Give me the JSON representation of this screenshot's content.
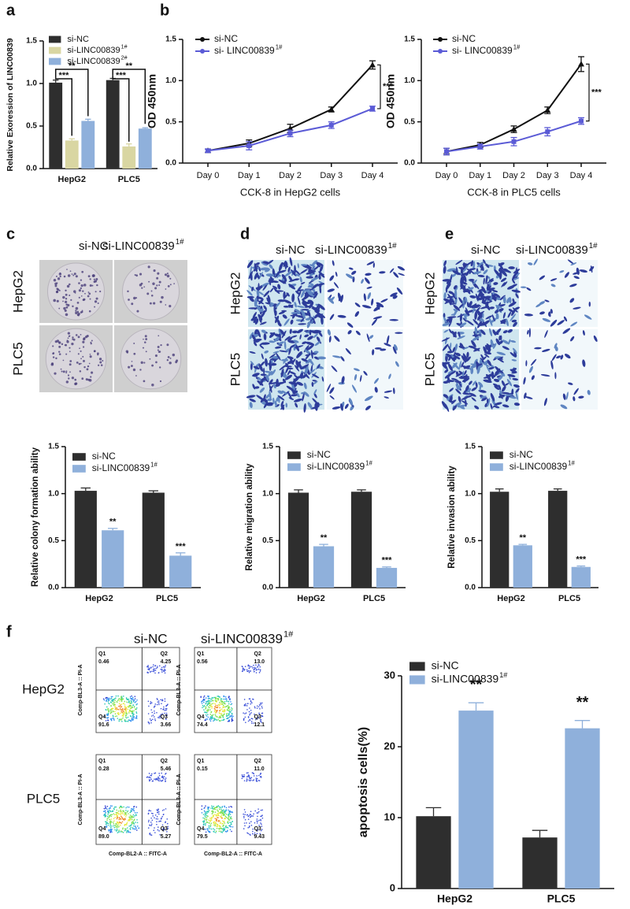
{
  "panel_labels": [
    "a",
    "b",
    "c",
    "d",
    "e",
    "f"
  ],
  "chart_data": [
    {
      "type": "bar",
      "ylabel": "Relative Exoression of LINC00839",
      "categories": [
        "HepG2",
        "PLC5"
      ],
      "series": [
        {
          "name": "si-NC",
          "color": "#2e2e2e",
          "values": [
            1.01,
            1.04
          ],
          "errors": [
            0.03,
            0.02
          ]
        },
        {
          "name": "si-LINC00839",
          "superscript": "1#",
          "color": "#d9d6a2",
          "values": [
            0.33,
            0.26
          ],
          "errors": [
            0.02,
            0.03
          ]
        },
        {
          "name": "si-LINC00839",
          "superscript": "2#",
          "color": "#8fb0db",
          "values": [
            0.56,
            0.47
          ],
          "errors": [
            0.02,
            0.01
          ]
        }
      ],
      "ylim": [
        0,
        1.5
      ],
      "yticks": [
        {
          "value": 0,
          "label": "0.0"
        },
        0.5,
        {
          "value": 1,
          "label": "1.0"
        },
        1.5
      ],
      "annotations": [
        "***",
        "**",
        "***",
        "**"
      ]
    },
    {
      "type": "line",
      "ylabel": "OD 450nm",
      "xlabel": "CCK-8 in HepG2 cells",
      "categories": [
        "Day 0",
        "Day 1",
        "Day 2",
        "Day 3",
        "Day 4"
      ],
      "series": [
        {
          "name": "si-NC",
          "color": "#111111",
          "values": [
            0.15,
            0.24,
            0.42,
            0.65,
            1.19
          ],
          "errors": [
            0.02,
            0.04,
            0.05,
            0.03,
            0.05
          ]
        },
        {
          "name": "si- LINC00839",
          "superscript": "1#",
          "color": "#5b5bd6",
          "values": [
            0.15,
            0.21,
            0.36,
            0.46,
            0.66
          ],
          "errors": [
            0.02,
            0.05,
            0.04,
            0.04,
            0.03
          ]
        }
      ],
      "ylim": [
        0,
        1.5
      ],
      "yticks": [
        {
          "value": 0,
          "label": "0.0"
        },
        0.5,
        {
          "value": 1,
          "label": "1.0"
        },
        1.5
      ],
      "annotations": [
        "***"
      ]
    },
    {
      "type": "line",
      "ylabel": "OD 450nm",
      "xlabel": "CCK-8 in PLC5 cells",
      "categories": [
        "Day 0",
        "Day 1",
        "Day 2",
        "Day 3",
        "Day 4"
      ],
      "series": [
        {
          "name": "si-NC",
          "color": "#111111",
          "values": [
            0.14,
            0.22,
            0.41,
            0.64,
            1.2
          ],
          "errors": [
            0.04,
            0.03,
            0.04,
            0.04,
            0.09
          ]
        },
        {
          "name": "si- LINC00839",
          "superscript": "1#",
          "color": "#5b5bd6",
          "values": [
            0.14,
            0.2,
            0.26,
            0.38,
            0.51
          ],
          "errors": [
            0.04,
            0.03,
            0.05,
            0.05,
            0.04
          ]
        }
      ],
      "ylim": [
        0,
        1.5
      ],
      "yticks": [
        {
          "value": 0,
          "label": "0.0"
        },
        0.5,
        {
          "value": 1,
          "label": "1.0"
        },
        1.5
      ],
      "annotations": [
        "***"
      ]
    },
    {
      "type": "bar",
      "ylabel": "Relative colony formation ability",
      "categories": [
        "HepG2",
        "PLC5"
      ],
      "series": [
        {
          "name": "si-NC",
          "color": "#2e2e2e",
          "values": [
            1.03,
            1.01
          ],
          "errors": [
            0.03,
            0.02
          ]
        },
        {
          "name": "si-LINC00839",
          "superscript": "1#",
          "color": "#8fb0db",
          "values": [
            0.61,
            0.34
          ],
          "errors": [
            0.02,
            0.03
          ]
        }
      ],
      "ylim": [
        0,
        1.5
      ],
      "yticks": [
        {
          "value": 0,
          "label": "0.0"
        },
        0.5,
        {
          "value": 1,
          "label": "1.0"
        },
        1.5
      ],
      "annotations": [
        "**",
        "***"
      ]
    },
    {
      "type": "bar",
      "ylabel": "Relative migration ability",
      "categories": [
        "HepG2",
        "PLC5"
      ],
      "series": [
        {
          "name": "si-NC",
          "color": "#2e2e2e",
          "values": [
            1.01,
            1.02
          ],
          "errors": [
            0.03,
            0.02
          ]
        },
        {
          "name": "si-LINC00839",
          "superscript": "1#",
          "color": "#8fb0db",
          "values": [
            0.44,
            0.21
          ],
          "errors": [
            0.02,
            0.01
          ]
        }
      ],
      "ylim": [
        0,
        1.5
      ],
      "yticks": [
        {
          "value": 0,
          "label": "0.0"
        },
        0.5,
        {
          "value": 1,
          "label": "1.0"
        },
        1.5
      ],
      "annotations": [
        "**",
        "***"
      ]
    },
    {
      "type": "bar",
      "ylabel": "Relative invasion ability",
      "categories": [
        "HepG2",
        "PLC5"
      ],
      "series": [
        {
          "name": "si-NC",
          "color": "#2e2e2e",
          "values": [
            1.02,
            1.03
          ],
          "errors": [
            0.03,
            0.02
          ]
        },
        {
          "name": "si-LINC00839",
          "superscript": "1#",
          "color": "#8fb0db",
          "values": [
            0.45,
            0.22
          ],
          "errors": [
            0.01,
            0.01
          ]
        }
      ],
      "ylim": [
        0,
        1.5
      ],
      "yticks": [
        {
          "value": 0,
          "label": "0.0"
        },
        0.5,
        {
          "value": 1,
          "label": "1.0"
        },
        1.5
      ],
      "annotations": [
        "**",
        "***"
      ]
    },
    {
      "type": "bar",
      "ylabel": "apoptosis cells(%)",
      "categories": [
        "HepG2",
        "PLC5"
      ],
      "series": [
        {
          "name": "si-NC",
          "color": "#2e2e2e",
          "values": [
            10.2,
            7.2
          ],
          "errors": [
            1.2,
            1.0
          ]
        },
        {
          "name": "si-LINC00839",
          "superscript": "1#",
          "color": "#8fb0db",
          "values": [
            25.1,
            22.6
          ],
          "errors": [
            1.1,
            1.1
          ]
        }
      ],
      "ylim": [
        0,
        30
      ],
      "yticks": [
        0,
        10,
        20,
        30
      ],
      "annotations": [
        "**",
        "**"
      ]
    }
  ],
  "image_panels": [
    {
      "columns": [
        {
          "text": "si-NC"
        },
        {
          "text": "si-LINC00839",
          "superscript": "1#"
        }
      ],
      "rows": [
        "HepG2",
        "PLC5"
      ]
    },
    {
      "columns": [
        {
          "text": "si-NC"
        },
        {
          "text": "si-LINC00839",
          "superscript": "1#"
        }
      ],
      "rows": [
        "HepG2",
        "PLC5"
      ]
    },
    {
      "columns": [
        {
          "text": "si-NC"
        },
        {
          "text": "si-LINC00839",
          "superscript": "1#"
        }
      ],
      "rows": [
        "HepG2",
        "PLC5"
      ]
    }
  ],
  "flow": {
    "columns": [
      {
        "text": "si-NC"
      },
      {
        "text": "si-LINC00839",
        "superscript": "1#"
      }
    ],
    "rows": [
      "HepG2",
      "PLC5"
    ],
    "plots": [
      [
        {
          "y_label": "Comp-BL3-A :: PI-A",
          "quadrants": [
            {
              "name": "Q1",
              "value": "0.46"
            },
            {
              "name": "Q2",
              "value": "4.25"
            },
            {
              "name": "Q3",
              "value": "3.66"
            },
            {
              "name": "Q4",
              "value": "91.6"
            }
          ]
        },
        {
          "y_label": "Comp-BL3-A :: PI-A",
          "quadrants": [
            {
              "name": "Q1",
              "value": "0.56"
            },
            {
              "name": "Q2",
              "value": "13.0"
            },
            {
              "name": "Q3",
              "value": "12.1"
            },
            {
              "name": "Q4",
              "value": "74.4"
            }
          ]
        }
      ],
      [
        {
          "y_label": "Comp-BL3-A :: PI-A",
          "x_label": "Comp-BL2-A :: FITC-A",
          "quadrants": [
            {
              "name": "Q1",
              "value": "0.28"
            },
            {
              "name": "Q2",
              "value": "5.46"
            },
            {
              "name": "Q3",
              "value": "5.27"
            },
            {
              "name": "Q4",
              "value": "89.0"
            }
          ]
        },
        {
          "y_label": "Comp-BL3-A :: PI-A",
          "x_label": "Comp-BL2-A :: FITC-A",
          "quadrants": [
            {
              "name": "Q1",
              "value": "0.15"
            },
            {
              "name": "Q2",
              "value": "11.0"
            },
            {
              "name": "Q3",
              "value": "9.43"
            },
            {
              "name": "Q4",
              "value": "79.5"
            }
          ]
        }
      ]
    ]
  }
}
